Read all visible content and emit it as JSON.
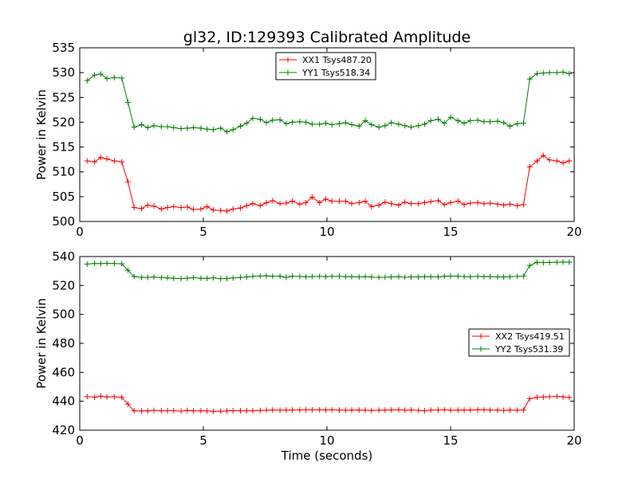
{
  "chart_data": [
    {
      "type": "line",
      "title": "gl32, ID:129393 Calibrated Amplitude",
      "xlabel": "",
      "ylabel": "Power in Kelvin",
      "xlim": [
        0,
        20
      ],
      "ylim": [
        500,
        535
      ],
      "xticks": [
        "0",
        "5",
        "10",
        "15",
        "20"
      ],
      "yticks": [
        "500",
        "505",
        "510",
        "515",
        "520",
        "525",
        "530",
        "535"
      ],
      "legend_position": "upper-center",
      "grid": false,
      "series": [
        {
          "name": "XX1 Tsys487.20",
          "color": "#ff0000",
          "marker": "+",
          "x": [
            0.3,
            0.6,
            0.85,
            1.1,
            1.4,
            1.7,
            1.95,
            2.2,
            2.5,
            2.75,
            3.0,
            3.3,
            3.55,
            3.8,
            4.1,
            4.35,
            4.6,
            4.9,
            5.15,
            5.4,
            5.7,
            5.95,
            6.2,
            6.5,
            6.75,
            7.0,
            7.3,
            7.55,
            7.8,
            8.1,
            8.35,
            8.6,
            8.9,
            9.15,
            9.4,
            9.7,
            9.95,
            10.2,
            10.5,
            10.75,
            11.0,
            11.3,
            11.55,
            11.8,
            12.1,
            12.35,
            12.6,
            12.9,
            13.15,
            13.4,
            13.7,
            13.95,
            14.2,
            14.5,
            14.75,
            15.0,
            15.3,
            15.55,
            15.8,
            16.1,
            16.35,
            16.6,
            16.9,
            17.15,
            17.4,
            17.7,
            17.95,
            18.2,
            18.5,
            18.75,
            19.0,
            19.3,
            19.55,
            19.8
          ],
          "y": [
            512.2,
            512.0,
            512.9,
            512.6,
            512.2,
            512.0,
            508.0,
            502.8,
            502.6,
            503.3,
            503.1,
            502.5,
            502.8,
            503.0,
            502.8,
            502.9,
            502.4,
            502.5,
            503.0,
            502.3,
            502.2,
            502.1,
            502.5,
            502.7,
            503.2,
            503.6,
            503.2,
            503.8,
            504.2,
            503.6,
            503.7,
            504.1,
            503.5,
            503.8,
            504.9,
            503.8,
            504.5,
            504.1,
            504.1,
            504.1,
            503.6,
            503.8,
            504.1,
            503.0,
            503.3,
            503.9,
            503.6,
            503.3,
            503.9,
            503.6,
            503.6,
            503.8,
            504.0,
            504.2,
            503.4,
            503.8,
            504.1,
            503.4,
            503.7,
            503.8,
            503.6,
            503.7,
            503.5,
            503.3,
            503.5,
            503.2,
            503.4,
            511.0,
            512.2,
            513.3,
            512.4,
            512.2,
            511.8,
            512.2
          ]
        },
        {
          "name": "YY1 Tsys518.34",
          "color": "#008000",
          "marker": "+",
          "x": [
            0.3,
            0.6,
            0.85,
            1.1,
            1.4,
            1.7,
            1.95,
            2.2,
            2.5,
            2.75,
            3.0,
            3.3,
            3.55,
            3.8,
            4.1,
            4.35,
            4.6,
            4.9,
            5.15,
            5.4,
            5.7,
            5.95,
            6.2,
            6.5,
            6.75,
            7.0,
            7.3,
            7.55,
            7.8,
            8.1,
            8.35,
            8.6,
            8.9,
            9.15,
            9.4,
            9.7,
            9.95,
            10.2,
            10.5,
            10.75,
            11.0,
            11.3,
            11.55,
            11.8,
            12.1,
            12.35,
            12.6,
            12.9,
            13.15,
            13.4,
            13.7,
            13.95,
            14.2,
            14.5,
            14.75,
            15.0,
            15.3,
            15.55,
            15.8,
            16.1,
            16.35,
            16.6,
            16.9,
            17.15,
            17.4,
            17.7,
            17.95,
            18.2,
            18.5,
            18.75,
            19.0,
            19.3,
            19.55,
            19.8
          ],
          "y": [
            528.4,
            529.5,
            529.7,
            528.8,
            529.0,
            528.9,
            524.0,
            519.0,
            519.5,
            518.9,
            519.3,
            519.1,
            519.1,
            518.9,
            518.7,
            518.8,
            518.9,
            518.8,
            518.6,
            518.5,
            518.8,
            518.1,
            518.5,
            519.2,
            519.8,
            520.8,
            520.6,
            519.9,
            520.4,
            520.5,
            519.7,
            520.0,
            520.1,
            520.0,
            519.6,
            519.6,
            519.8,
            519.5,
            519.7,
            519.9,
            519.5,
            519.2,
            520.3,
            519.5,
            519.0,
            519.3,
            519.9,
            519.6,
            519.3,
            519.0,
            519.3,
            519.6,
            520.3,
            520.6,
            519.8,
            521.0,
            520.3,
            519.8,
            520.3,
            520.4,
            520.1,
            520.1,
            520.2,
            519.9,
            519.2,
            519.7,
            519.8,
            528.7,
            529.8,
            529.9,
            530.0,
            530.0,
            530.1,
            529.8
          ]
        }
      ]
    },
    {
      "type": "line",
      "title": "",
      "xlabel": "Time (seconds)",
      "ylabel": "Power in Kelvin",
      "xlim": [
        0,
        20
      ],
      "ylim": [
        420,
        540
      ],
      "xticks": [
        "0",
        "5",
        "10",
        "15",
        "20"
      ],
      "yticks": [
        "420",
        "440",
        "460",
        "480",
        "500",
        "520",
        "540"
      ],
      "legend_position": "center-right",
      "grid": false,
      "series": [
        {
          "name": "XX2 Tsys419.51",
          "color": "#ff0000",
          "marker": "+",
          "x": [
            0.3,
            0.6,
            0.85,
            1.1,
            1.4,
            1.7,
            1.95,
            2.2,
            2.5,
            2.75,
            3.0,
            3.3,
            3.55,
            3.8,
            4.1,
            4.35,
            4.6,
            4.9,
            5.15,
            5.4,
            5.7,
            5.95,
            6.2,
            6.5,
            6.75,
            7.0,
            7.3,
            7.55,
            7.8,
            8.1,
            8.35,
            8.6,
            8.9,
            9.15,
            9.4,
            9.7,
            9.95,
            10.2,
            10.5,
            10.75,
            11.0,
            11.3,
            11.55,
            11.8,
            12.1,
            12.35,
            12.6,
            12.9,
            13.15,
            13.4,
            13.7,
            13.95,
            14.2,
            14.5,
            14.75,
            15.0,
            15.3,
            15.55,
            15.8,
            16.1,
            16.35,
            16.6,
            16.9,
            17.15,
            17.4,
            17.7,
            17.95,
            18.2,
            18.5,
            18.75,
            19.0,
            19.3,
            19.55,
            19.8
          ],
          "y": [
            443.2,
            442.8,
            443.5,
            443.0,
            443.1,
            442.7,
            438.0,
            433.4,
            433.3,
            433.3,
            433.7,
            433.4,
            433.5,
            433.5,
            433.2,
            433.6,
            433.3,
            433.4,
            433.3,
            433.0,
            433.1,
            433.3,
            433.5,
            433.4,
            433.5,
            433.4,
            433.6,
            433.8,
            434.0,
            433.8,
            433.9,
            434.0,
            434.0,
            434.1,
            434.1,
            434.1,
            434.0,
            434.1,
            433.9,
            433.8,
            433.9,
            433.9,
            433.8,
            433.6,
            433.8,
            433.9,
            434.0,
            434.1,
            433.8,
            434.0,
            433.7,
            433.4,
            433.9,
            434.0,
            434.1,
            433.8,
            433.9,
            434.0,
            433.9,
            434.2,
            434.1,
            433.9,
            433.9,
            433.7,
            434.0,
            433.8,
            433.9,
            441.8,
            442.8,
            442.9,
            443.1,
            443.4,
            443.0,
            442.6
          ]
        },
        {
          "name": "YY2 Tsys531.39",
          "color": "#008000",
          "marker": "+",
          "x": [
            0.3,
            0.6,
            0.85,
            1.1,
            1.4,
            1.7,
            1.95,
            2.2,
            2.5,
            2.75,
            3.0,
            3.3,
            3.55,
            3.8,
            4.1,
            4.35,
            4.6,
            4.9,
            5.15,
            5.4,
            5.7,
            5.95,
            6.2,
            6.5,
            6.75,
            7.0,
            7.3,
            7.55,
            7.8,
            8.1,
            8.35,
            8.6,
            8.9,
            9.15,
            9.4,
            9.7,
            9.95,
            10.2,
            10.5,
            10.75,
            11.0,
            11.3,
            11.55,
            11.8,
            12.1,
            12.35,
            12.6,
            12.9,
            13.15,
            13.4,
            13.7,
            13.95,
            14.2,
            14.5,
            14.75,
            15.0,
            15.3,
            15.55,
            15.8,
            16.1,
            16.35,
            16.6,
            16.9,
            17.15,
            17.4,
            17.7,
            17.95,
            18.2,
            18.5,
            18.75,
            19.0,
            19.3,
            19.55,
            19.8
          ],
          "y": [
            534.8,
            535.2,
            535.1,
            535.3,
            535.2,
            535.0,
            530.5,
            526.2,
            525.6,
            525.6,
            525.8,
            525.4,
            525.3,
            524.9,
            524.8,
            525.0,
            525.4,
            525.0,
            524.9,
            525.3,
            524.7,
            524.8,
            525.2,
            525.6,
            525.8,
            526.3,
            526.5,
            526.6,
            526.4,
            526.4,
            525.6,
            526.4,
            526.2,
            526.0,
            526.2,
            526.3,
            526.1,
            526.3,
            526.3,
            526.1,
            526.0,
            525.9,
            526.1,
            525.8,
            525.6,
            525.7,
            525.9,
            526.0,
            525.7,
            525.9,
            525.9,
            526.1,
            526.0,
            525.9,
            526.4,
            526.5,
            526.4,
            526.2,
            526.0,
            526.3,
            526.1,
            526.2,
            525.9,
            525.9,
            526.0,
            526.3,
            526.4,
            533.8,
            536.0,
            535.8,
            535.9,
            536.1,
            536.2,
            536.1
          ]
        }
      ]
    }
  ]
}
